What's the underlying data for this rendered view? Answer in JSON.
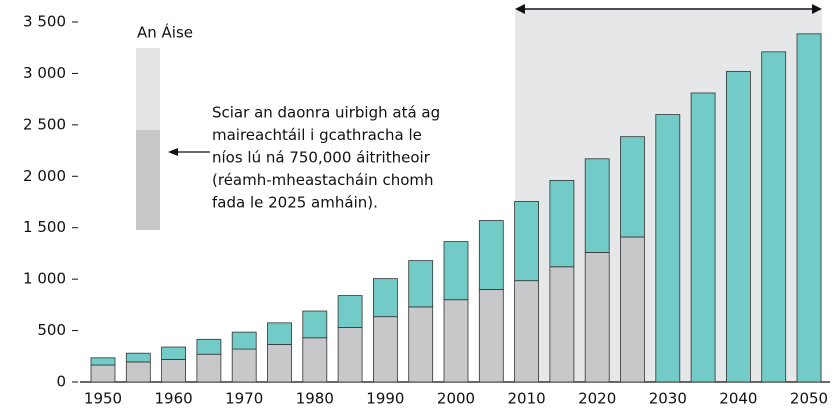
{
  "chart_data": {
    "type": "stacked_bar",
    "legend_title": "An Áise",
    "annotation": [
      "Sciar an daonra uirbigh atá ag",
      "maireachtáil i gcathracha le",
      "níos lú ná 750,000 áitritheoir",
      "(réamh-mheastacháin chomh",
      "fada le 2025 amháin)."
    ],
    "categories": [
      "1950",
      null,
      "1960",
      null,
      "1970",
      null,
      "1980",
      null,
      "1990",
      null,
      "2000",
      null,
      "2010",
      null,
      "2020",
      null,
      "2030",
      null,
      "2040",
      null,
      "2050"
    ],
    "series": [
      {
        "color": "#c8c8ca",
        "values": [
          165,
          195,
          220,
          270,
          320,
          365,
          430,
          530,
          635,
          730,
          800,
          900,
          985,
          1120,
          1260,
          1410,
          null,
          null,
          null,
          null,
          null
        ]
      },
      {
        "color": "#72cbc7",
        "values": [
          70,
          85,
          120,
          145,
          165,
          210,
          260,
          310,
          370,
          450,
          565,
          670,
          770,
          840,
          910,
          975,
          2600,
          2810,
          3020,
          3210,
          3385
        ]
      }
    ],
    "ylim": [
      0,
      3500
    ],
    "yticks": [
      0,
      500,
      {
        "value": 1000,
        "label": "1 000"
      },
      {
        "value": 1500,
        "label": "1 500"
      },
      {
        "value": 2000,
        "label": "2 000"
      },
      {
        "value": 2500,
        "label": "2 500"
      },
      {
        "value": 3000,
        "label": "3 000"
      },
      {
        "value": 3500,
        "label": "3 500"
      }
    ]
  }
}
